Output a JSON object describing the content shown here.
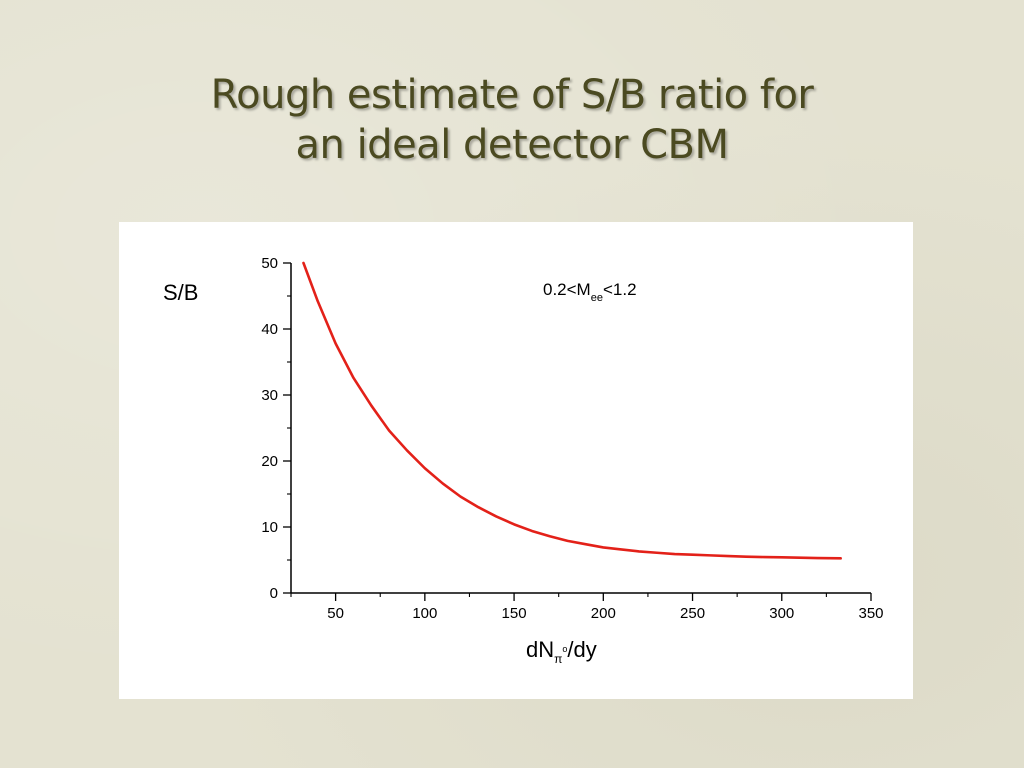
{
  "slide": {
    "title_line1": "Rough estimate of S/B ratio for",
    "title_line2": "an ideal detector CBM"
  },
  "chart_data": {
    "type": "line",
    "xlabel": {
      "main": "dN",
      "subscript": "π",
      "superscript": "o",
      "suffix": "/dy"
    },
    "ylabel": "S/B",
    "annotation": {
      "prefix": "0.2<M",
      "subscript": "ee",
      "suffix": "<1.2"
    },
    "xlim": [
      25,
      350
    ],
    "ylim": [
      0,
      50
    ],
    "x_ticks": [
      50,
      100,
      150,
      200,
      250,
      300,
      350
    ],
    "y_ticks": [
      0,
      10,
      20,
      30,
      40,
      50
    ],
    "x_tick_labels": [
      "50",
      "100",
      "150",
      "200",
      "250",
      "300",
      "350"
    ],
    "y_tick_labels": [
      "0",
      "10",
      "20",
      "30",
      "40",
      "50"
    ],
    "grid": false,
    "series": [
      {
        "color": "#e32119",
        "x": [
          32,
          40,
          50,
          60,
          70,
          80,
          90,
          100,
          110,
          120,
          130,
          140,
          150,
          160,
          170,
          180,
          190,
          200,
          210,
          220,
          230,
          240,
          250,
          260,
          270,
          280,
          290,
          300,
          310,
          320,
          333
        ],
        "y": [
          50.0,
          44.2,
          37.8,
          32.6,
          28.4,
          24.6,
          21.6,
          18.9,
          16.6,
          14.6,
          13.0,
          11.6,
          10.4,
          9.4,
          8.6,
          7.9,
          7.4,
          6.9,
          6.6,
          6.3,
          6.1,
          5.9,
          5.8,
          5.7,
          5.6,
          5.5,
          5.45,
          5.4,
          5.35,
          5.3,
          5.25
        ]
      }
    ]
  }
}
